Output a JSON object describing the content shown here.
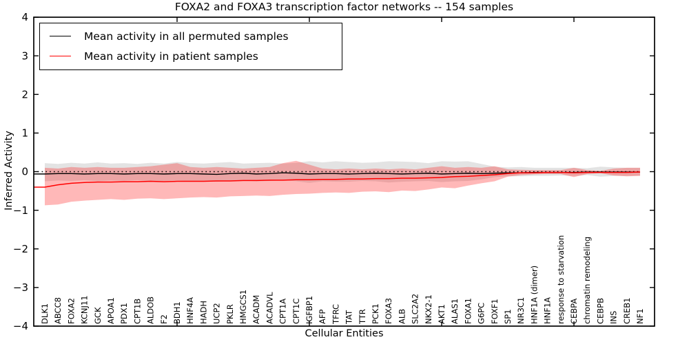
{
  "title": "FOXA2 and FOXA3 transcription factor networks -- 154 samples",
  "legend": {
    "entries": [
      {
        "label": "Mean activity in all permuted samples",
        "color": "#000000"
      },
      {
        "label": "Mean activity in patient samples",
        "color": "#ff0000"
      }
    ]
  },
  "axes": {
    "x_label": "Cellular Entities",
    "y_label": "Inferred Activity",
    "y_ticks": [
      "4",
      "3",
      "2",
      "1",
      "0",
      "−1",
      "−2",
      "−3",
      "−4"
    ],
    "y_tick_values": [
      4,
      3,
      2,
      1,
      0,
      -1,
      -2,
      -3,
      -4
    ]
  },
  "colors": {
    "background": "#ffffff",
    "frame": "#000000",
    "zero_line": "#000000",
    "permuted_line": "#000000",
    "patient_line": "#ff0000",
    "permuted_band": "#808080",
    "patient_band": "#ff0000"
  },
  "chart_data": {
    "type": "line",
    "title": "FOXA2 and FOXA3 transcription factor networks -- 154 samples",
    "xlabel": "Cellular Entities",
    "ylabel": "Inferred Activity",
    "ylim": [
      -4,
      4
    ],
    "grid": false,
    "legend_position": "upper-left",
    "zero_line": {
      "value": 0,
      "style": "dotted",
      "color": "#000000"
    },
    "x_major_ticks": [
      10,
      20,
      30,
      40
    ],
    "categories": [
      "DLK1",
      "ABCC8",
      "FOXA2",
      "KCNJ11",
      "GCK",
      "APOA1",
      "PDX1",
      "CPT1B",
      "ALDOB",
      "F2",
      "BDH1",
      "HNF4A",
      "HADH",
      "UCP2",
      "PKLR",
      "HMGCS1",
      "ACADM",
      "ACADVL",
      "CPT1A",
      "CPT1C",
      "IGFBP1",
      "AFP",
      "TFRC",
      "TAT",
      "TTR",
      "PCK1",
      "FOXA3",
      "ALB",
      "SLC2A2",
      "NKX2-1",
      "AKT1",
      "ALAS1",
      "FOXA1",
      "G6PC",
      "FOXF1",
      "SP1",
      "NR3C1",
      "HNF1A (dimer)",
      "HNF1A",
      "response to starvation",
      "CEBPA",
      "chromatin remodeling",
      "CEBPB",
      "INS",
      "CREB1",
      "NF1"
    ],
    "series": [
      {
        "name": "Mean activity in all permuted samples",
        "color": "#000000",
        "line_width": 1.4,
        "line_name": "permuted-mean-line",
        "band_name": "permuted-band",
        "band_color": "#808080",
        "band_opacity": 0.22,
        "values": [
          -0.06,
          -0.05,
          -0.05,
          -0.06,
          -0.05,
          -0.05,
          -0.06,
          -0.05,
          -0.05,
          -0.06,
          -0.05,
          -0.05,
          -0.06,
          -0.07,
          -0.05,
          -0.04,
          -0.06,
          -0.05,
          -0.03,
          -0.04,
          -0.06,
          -0.05,
          -0.05,
          -0.06,
          -0.05,
          -0.04,
          -0.05,
          -0.06,
          -0.05,
          -0.04,
          -0.06,
          -0.05,
          -0.04,
          -0.05,
          -0.04,
          -0.03,
          -0.03,
          -0.02,
          -0.02,
          -0.02,
          -0.02,
          -0.01,
          -0.01,
          -0.01,
          -0.01,
          -0.01
        ],
        "band_upper": [
          0.22,
          0.2,
          0.23,
          0.21,
          0.24,
          0.21,
          0.22,
          0.2,
          0.23,
          0.21,
          0.25,
          0.22,
          0.21,
          0.23,
          0.25,
          0.21,
          0.22,
          0.23,
          0.21,
          0.23,
          0.27,
          0.24,
          0.27,
          0.25,
          0.23,
          0.24,
          0.27,
          0.26,
          0.25,
          0.22,
          0.27,
          0.26,
          0.27,
          0.2,
          0.13,
          0.11,
          0.12,
          0.1,
          0.1,
          0.1,
          0.1,
          0.09,
          0.13,
          0.11,
          0.1,
          0.1
        ],
        "band_lower": [
          -0.25,
          -0.23,
          -0.24,
          -0.22,
          -0.25,
          -0.23,
          -0.24,
          -0.22,
          -0.25,
          -0.24,
          -0.23,
          -0.25,
          -0.24,
          -0.26,
          -0.24,
          -0.23,
          -0.25,
          -0.24,
          -0.22,
          -0.25,
          -0.29,
          -0.25,
          -0.26,
          -0.26,
          -0.24,
          -0.25,
          -0.28,
          -0.26,
          -0.25,
          -0.24,
          -0.27,
          -0.25,
          -0.24,
          -0.2,
          -0.14,
          -0.12,
          -0.12,
          -0.11,
          -0.11,
          -0.1,
          -0.11,
          -0.09,
          -0.13,
          -0.11,
          -0.11,
          -0.1
        ]
      },
      {
        "name": "Mean activity in patient samples",
        "color": "#ff0000",
        "line_width": 1.5,
        "line_name": "patient-mean-line",
        "band_name": "patient-band",
        "band_color": "#ff0000",
        "band_opacity": 0.28,
        "values": [
          -0.4,
          -0.34,
          -0.3,
          -0.28,
          -0.27,
          -0.27,
          -0.26,
          -0.26,
          -0.25,
          -0.26,
          -0.25,
          -0.25,
          -0.25,
          -0.24,
          -0.24,
          -0.23,
          -0.23,
          -0.22,
          -0.22,
          -0.21,
          -0.21,
          -0.2,
          -0.2,
          -0.19,
          -0.19,
          -0.18,
          -0.18,
          -0.17,
          -0.17,
          -0.16,
          -0.15,
          -0.13,
          -0.12,
          -0.1,
          -0.08,
          -0.05,
          -0.03,
          -0.03,
          -0.02,
          -0.02,
          -0.03,
          -0.02,
          -0.02,
          -0.02,
          -0.02,
          -0.01
        ],
        "band_upper": [
          0.1,
          0.08,
          0.12,
          0.1,
          0.12,
          0.1,
          0.1,
          0.12,
          0.14,
          0.18,
          0.22,
          0.12,
          0.1,
          0.12,
          0.1,
          0.08,
          0.1,
          0.12,
          0.22,
          0.28,
          0.18,
          0.08,
          0.06,
          0.08,
          0.06,
          0.08,
          0.06,
          0.08,
          0.06,
          0.1,
          0.14,
          0.1,
          0.12,
          0.1,
          0.14,
          0.06,
          0.05,
          0.04,
          0.04,
          0.04,
          0.1,
          0.04,
          0.02,
          0.08,
          0.1,
          0.1
        ],
        "band_lower": [
          -0.87,
          -0.85,
          -0.78,
          -0.75,
          -0.73,
          -0.71,
          -0.73,
          -0.7,
          -0.69,
          -0.71,
          -0.69,
          -0.67,
          -0.66,
          -0.67,
          -0.64,
          -0.63,
          -0.62,
          -0.63,
          -0.6,
          -0.58,
          -0.57,
          -0.55,
          -0.54,
          -0.55,
          -0.52,
          -0.51,
          -0.53,
          -0.49,
          -0.5,
          -0.46,
          -0.41,
          -0.43,
          -0.36,
          -0.3,
          -0.25,
          -0.13,
          -0.09,
          -0.07,
          -0.06,
          -0.06,
          -0.14,
          -0.06,
          -0.04,
          -0.1,
          -0.12,
          -0.11
        ]
      }
    ]
  }
}
